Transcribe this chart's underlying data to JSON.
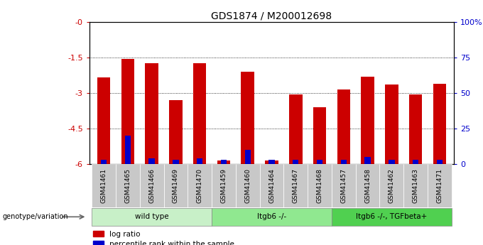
{
  "title": "GDS1874 / M200012698",
  "samples": [
    "GSM41461",
    "GSM41465",
    "GSM41466",
    "GSM41469",
    "GSM41470",
    "GSM41459",
    "GSM41460",
    "GSM41464",
    "GSM41467",
    "GSM41468",
    "GSM41457",
    "GSM41458",
    "GSM41462",
    "GSM41463",
    "GSM41471"
  ],
  "log_ratios": [
    -2.35,
    -1.55,
    -1.75,
    -3.3,
    -1.75,
    -5.85,
    -2.1,
    -5.85,
    -3.05,
    -3.6,
    -2.85,
    -2.3,
    -2.65,
    -3.05,
    -2.6
  ],
  "percentile_ranks": [
    3,
    20,
    4,
    3,
    4,
    3,
    10,
    3,
    3,
    3,
    3,
    5,
    3,
    3,
    3
  ],
  "groups": [
    {
      "label": "wild type",
      "start": 0,
      "end": 5,
      "color": "#c8f0c8"
    },
    {
      "label": "Itgb6 -/-",
      "start": 5,
      "end": 10,
      "color": "#90e890"
    },
    {
      "label": "Itgb6 -/-, TGFbeta+",
      "start": 10,
      "end": 15,
      "color": "#50d050"
    }
  ],
  "ylim_left": [
    -6,
    0
  ],
  "yticks_left": [
    0,
    -1.5,
    -3,
    -4.5,
    -6
  ],
  "ytick_labels_left": [
    "-0",
    "-1.5",
    "-3",
    "-4.5",
    "-6"
  ],
  "yticks_right": [
    0,
    25,
    50,
    75,
    100
  ],
  "ytick_labels_right": [
    "0",
    "25",
    "50",
    "75",
    "100%"
  ],
  "bar_color": "#cc0000",
  "pct_color": "#0000cc",
  "bg": "#ffffff",
  "sample_box_color": "#c8c8c8",
  "dotted_grid": [
    -1.5,
    -3.0,
    -4.5
  ]
}
